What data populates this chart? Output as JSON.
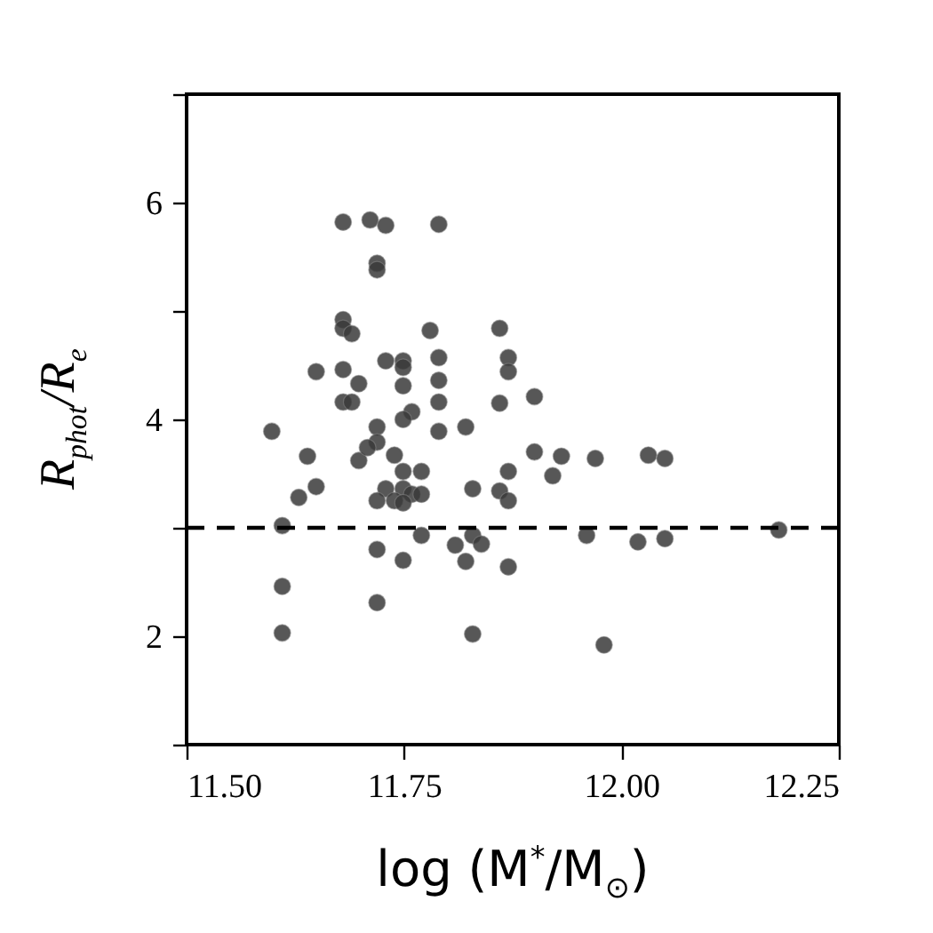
{
  "chart_data": {
    "type": "scatter",
    "xlabel": "log (M$^{*}$/M$_{⊙}$)",
    "ylabel": "R$_{phot}$/R$_{e}$",
    "x": [
      11.598,
      11.61,
      11.61,
      11.61,
      11.629,
      11.639,
      11.649,
      11.649,
      11.68,
      11.711,
      11.729,
      11.79,
      11.719,
      11.719,
      11.68,
      11.68,
      11.69,
      11.78,
      11.86,
      11.68,
      11.698,
      11.729,
      11.749,
      11.749,
      11.79,
      11.87,
      11.87,
      11.79,
      11.749,
      11.68,
      11.69,
      11.79,
      11.9,
      11.86,
      11.759,
      11.749,
      11.719,
      11.719,
      11.79,
      11.821,
      11.739,
      11.698,
      11.708,
      11.749,
      11.77,
      11.87,
      11.729,
      11.749,
      11.759,
      11.829,
      11.719,
      11.739,
      11.749,
      11.77,
      11.86,
      11.87,
      11.9,
      11.921,
      11.931,
      11.97,
      12.031,
      12.05,
      11.77,
      11.829,
      11.839,
      11.809,
      11.821,
      11.87,
      11.719,
      11.749,
      11.719,
      11.829,
      11.96,
      12.019,
      12.05,
      12.181,
      11.98
    ],
    "series": [
      {
        "color": "#3a3a3a",
        "values": [
          3.89,
          3.02,
          2.46,
          2.03,
          3.28,
          3.66,
          3.38,
          4.44,
          5.82,
          5.84,
          5.79,
          5.8,
          5.44,
          5.38,
          4.92,
          4.84,
          4.79,
          4.82,
          4.84,
          4.46,
          4.33,
          4.54,
          4.54,
          4.48,
          4.57,
          4.57,
          4.44,
          4.36,
          4.31,
          4.16,
          4.16,
          4.16,
          4.21,
          4.15,
          4.07,
          4.0,
          3.93,
          3.79,
          3.89,
          3.93,
          3.67,
          3.62,
          3.74,
          3.52,
          3.52,
          3.52,
          3.36,
          3.36,
          3.31,
          3.36,
          3.25,
          3.25,
          3.23,
          3.31,
          3.34,
          3.25,
          3.7,
          3.48,
          3.66,
          3.64,
          3.67,
          3.64,
          2.93,
          2.93,
          2.85,
          2.84,
          2.69,
          2.64,
          2.8,
          2.7,
          2.31,
          2.02,
          2.93,
          2.87,
          2.9,
          2.98,
          1.92
        ]
      }
    ],
    "xlim": [
      11.5,
      12.25
    ],
    "xticks": [
      {
        "value": 11.5,
        "label": "11.50"
      },
      {
        "value": 11.75,
        "label": "11.75"
      },
      {
        "value": 12.0,
        "label": "12.00"
      },
      {
        "value": 12.25,
        "label": "12.25"
      }
    ],
    "ylim": [
      1,
      7
    ],
    "yticks": [
      {
        "value": 1,
        "label": null
      },
      2,
      {
        "value": 3,
        "label": null
      },
      4,
      {
        "value": 5,
        "label": null
      },
      6,
      {
        "value": 7,
        "label": null
      }
    ],
    "ref_lines": [
      {
        "axis": "y",
        "value": 3,
        "line_style": "dashed",
        "color": "#000000"
      }
    ],
    "marker": "circle",
    "grid": false
  }
}
